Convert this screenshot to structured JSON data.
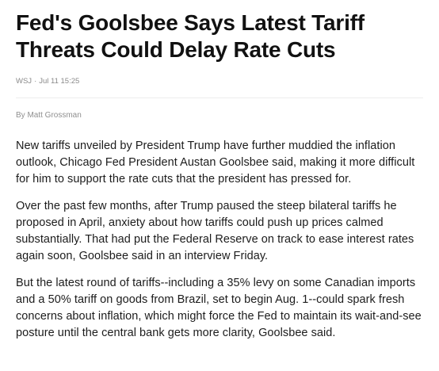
{
  "article": {
    "headline": "Fed's Goolsbee Says Latest Tariff Threats Could Delay Rate Cuts",
    "source": "WSJ",
    "separator": "·",
    "timestamp": "Jul 11 15:25",
    "byline": "By Matt Grossman",
    "paragraphs": [
      "New tariffs unveiled by President Trump have further muddied the inflation outlook, Chicago Fed President Austan Goolsbee said, making it more difficult for him to support the rate cuts that the president has pressed for.",
      "Over the past few months, after Trump paused the steep bilateral tariffs he proposed in April, anxiety about how tariffs could push up prices calmed substantially. That had put the Federal Reserve on track to ease interest rates again soon, Goolsbee said in an interview Friday.",
      "But the latest round of tariffs--including a 35% levy on some Canadian imports and a 50% tariff on goods from Brazil, set to begin Aug. 1--could spark fresh concerns about inflation, which might force the Fed to maintain its wait-and-see posture until the central bank gets more clarity, Goolsbee said."
    ]
  }
}
